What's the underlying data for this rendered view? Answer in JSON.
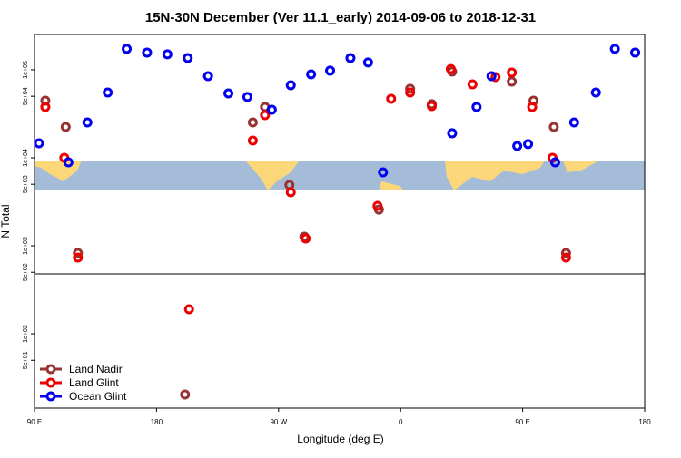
{
  "chart_data": {
    "type": "scatter",
    "title": "15N-30N December (Ver 11.1_early)   2014-09-06 to 2018-12-31",
    "x_label": "Longitude (deg E)",
    "y_label": "N Total",
    "xlim": [
      90,
      540
    ],
    "ylim": [
      14.3,
      252000
    ],
    "ylog": true,
    "xticks": [
      {
        "value": 90,
        "label": "90 E"
      },
      {
        "value": 180,
        "label": "180"
      },
      {
        "value": 270,
        "label": "90 W"
      },
      {
        "value": 360,
        "label": "0"
      },
      {
        "value": 450,
        "label": "90 E"
      },
      {
        "value": 540,
        "label": "180"
      }
    ],
    "yticks": [
      {
        "value": 50,
        "label": "5e+01"
      },
      {
        "value": 100,
        "label": "1e+02"
      },
      {
        "value": 500,
        "label": "5e+02"
      },
      {
        "value": 1000,
        "label": "1e+03"
      },
      {
        "value": 5000,
        "label": "5e+03"
      },
      {
        "value": 10000,
        "label": "1e+04"
      },
      {
        "value": 50000,
        "label": "5e+04"
      },
      {
        "value": 100000,
        "label": "1e+05"
      }
    ],
    "legend": "bottom-left",
    "series": [
      {
        "name": "Land Nadir",
        "color": "#993333",
        "x": [
          98,
          113,
          122,
          251,
          260,
          278,
          289,
          344,
          367,
          383,
          398,
          442,
          458,
          473,
          482,
          201
        ],
        "values": [
          44600,
          22400,
          828,
          25200,
          37800,
          4910,
          1270,
          2580,
          60800,
          40600,
          95400,
          73400,
          44600,
          22400,
          828,
          20.4
        ]
      },
      {
        "name": "Land Glint",
        "color": "#ee0000",
        "x": [
          98,
          112,
          122,
          204,
          251,
          260,
          279,
          290,
          343,
          353,
          367,
          383,
          397,
          413,
          430,
          442,
          457,
          472,
          482
        ],
        "values": [
          37800,
          10000,
          734,
          190,
          15700,
          30500,
          4060,
          1210,
          2840,
          46800,
          55200,
          38700,
          102000,
          68400,
          82700,
          93100,
          37800,
          10000,
          734
        ]
      },
      {
        "name": "Ocean Glint",
        "color": "#0000ee",
        "x": [
          93.3,
          115,
          129,
          144,
          158,
          173,
          188,
          203,
          218,
          233,
          247,
          265,
          279,
          294,
          308,
          323,
          336,
          347,
          398,
          416,
          427,
          446,
          454,
          474,
          488,
          504,
          518,
          533
        ],
        "values": [
          14600,
          8880,
          25200,
          55200,
          173000,
          157000,
          150000,
          136000,
          84700,
          53900,
          49100,
          35200,
          66800,
          88800,
          97700,
          136000,
          121000,
          6840,
          19000,
          37800,
          84700,
          13600,
          14300,
          8880,
          25200,
          55200,
          173000,
          157000
        ]
      }
    ]
  }
}
